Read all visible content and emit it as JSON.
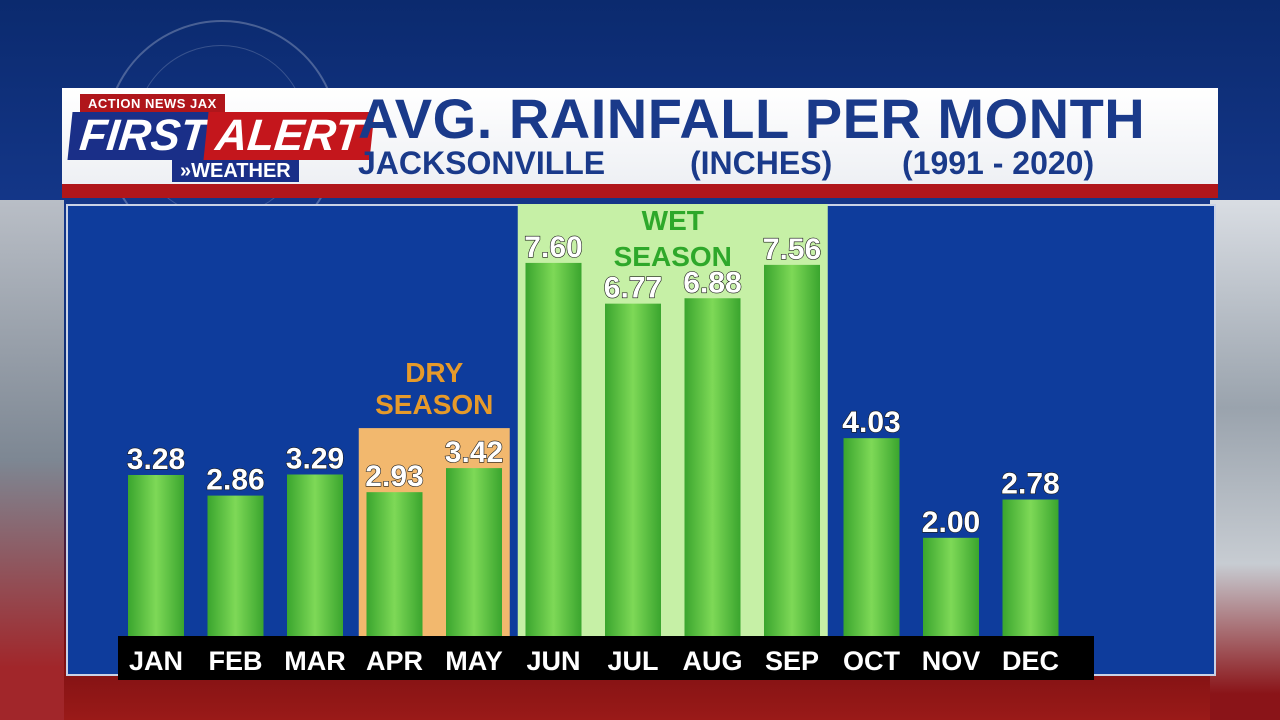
{
  "header": {
    "logo": {
      "top": "ACTION NEWS JAX",
      "first": "FIRST",
      "alert": "ALERT",
      "weather": "»WEATHER"
    },
    "title": "AVG. RAINFALL PER MONTH",
    "subtitle_city": "JACKSONVILLE",
    "subtitle_units": "(INCHES)",
    "subtitle_period": "(1991 - 2020)"
  },
  "chart_data": {
    "type": "bar",
    "title": "AVG. RAINFALL PER MONTH",
    "categories": [
      "JAN",
      "FEB",
      "MAR",
      "APR",
      "MAY",
      "JUN",
      "JUL",
      "AUG",
      "SEP",
      "OCT",
      "NOV",
      "DEC"
    ],
    "values": [
      3.28,
      2.86,
      3.29,
      2.93,
      3.42,
      7.6,
      6.77,
      6.88,
      7.56,
      4.03,
      2.0,
      2.78
    ],
    "value_labels": [
      "3.28",
      "2.86",
      "3.29",
      "2.93",
      "3.42",
      "7.60",
      "6.77",
      "6.88",
      "7.56",
      "4.03",
      "2.00",
      "2.78"
    ],
    "ylim": [
      0,
      8.8
    ],
    "grid": false,
    "annotations": [
      {
        "text_lines": [
          "DRY",
          "SEASON"
        ],
        "from": "APR",
        "to": "MAY",
        "color": "#f2b86e",
        "text_color": "#e69a2a"
      },
      {
        "text_lines": [
          "WET",
          "SEASON"
        ],
        "from": "JUN",
        "to": "SEP",
        "color": "#c6f0a6",
        "text_color": "#2ea82a"
      }
    ],
    "colors": {
      "bar": "#3aa52e",
      "bar_highlight": "#7ed957",
      "axis_strip": "#000000",
      "panel": "#0e3c9c"
    }
  }
}
